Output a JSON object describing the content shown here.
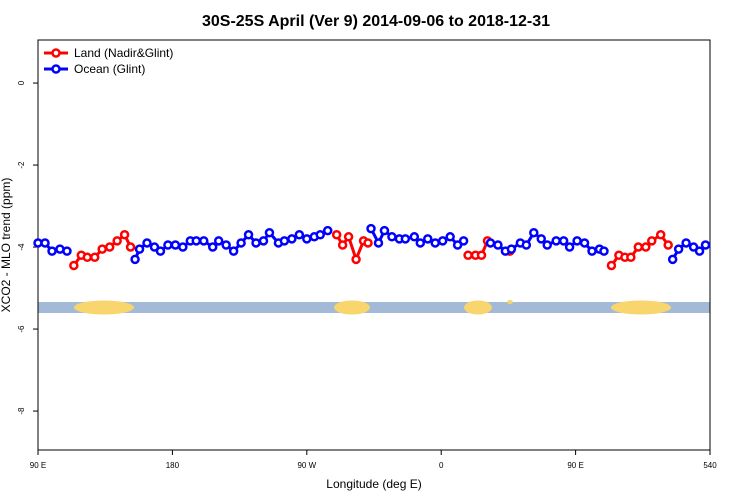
{
  "chart_data": {
    "type": "line",
    "title": "30S-25S April (Ver 9)   2014-09-06 to 2018-12-31",
    "x_label": "Longitude (deg E)",
    "y_label": "XCO2 - MLO trend (ppm)",
    "xlim": [
      90,
      540
    ],
    "ylim": [
      -8.95,
      1.05
    ],
    "xticks": [
      {
        "value": 90,
        "label": "90 E"
      },
      180,
      {
        "value": 270,
        "label": "90 W"
      },
      {
        "value": 360,
        "label": "0"
      },
      {
        "value": 450,
        "label": "90 E"
      },
      540
    ],
    "yticks": [
      0,
      -2,
      -4,
      -6,
      -8
    ],
    "legend": "top-left",
    "series": [
      {
        "name": "Land (Nadir&Glint)",
        "color": "#ff0000",
        "x": [
          114,
          119,
          123,
          128,
          133,
          138,
          143,
          148,
          152,
          null,
          290,
          294,
          298,
          303,
          308,
          311,
          null,
          378,
          383,
          387,
          391,
          null,
          406,
          null,
          474,
          479,
          483,
          487,
          492,
          497,
          501,
          507,
          512
        ],
        "values": [
          -4.45,
          -4.2,
          -4.25,
          -4.25,
          -4.05,
          -4.0,
          -3.85,
          -3.7,
          -4.0,
          null,
          -3.7,
          -3.95,
          -3.75,
          -4.3,
          -3.85,
          -3.9,
          null,
          -4.2,
          -4.2,
          -4.2,
          -3.85,
          null,
          -4.1,
          null,
          -4.45,
          -4.2,
          -4.25,
          -4.25,
          -4.0,
          -4.0,
          -3.85,
          -3.7,
          -3.95
        ]
      },
      {
        "name": "Ocean (Glint)",
        "color": "#0000ff",
        "x": [
          90,
          94.7,
          99.4,
          104.7,
          109.4,
          null,
          155,
          158,
          163,
          168,
          172,
          177,
          182,
          187,
          192,
          196,
          201,
          207,
          211,
          216,
          221,
          226,
          231,
          236,
          241,
          245,
          251,
          255,
          260,
          265,
          270,
          275,
          279,
          284,
          null,
          313,
          318,
          322,
          327,
          332,
          336,
          342,
          346,
          351,
          356,
          361,
          366,
          371,
          375,
          null,
          393,
          398,
          403,
          407,
          413,
          417,
          422,
          427,
          431,
          437,
          442,
          446,
          451,
          456,
          461,
          466,
          469,
          null,
          515,
          519,
          524,
          529,
          533,
          537
        ],
        "values": [
          -3.9,
          -3.9,
          -4.1,
          -4.05,
          -4.1,
          null,
          -4.3,
          -4.05,
          -3.9,
          -4.0,
          -4.1,
          -3.95,
          -3.95,
          -4.0,
          -3.85,
          -3.85,
          -3.85,
          -4.0,
          -3.85,
          -3.95,
          -4.1,
          -3.9,
          -3.7,
          -3.9,
          -3.85,
          -3.65,
          -3.9,
          -3.85,
          -3.8,
          -3.7,
          -3.8,
          -3.75,
          -3.7,
          -3.6,
          null,
          -3.55,
          -3.9,
          -3.6,
          -3.75,
          -3.8,
          -3.8,
          -3.75,
          -3.9,
          -3.8,
          -3.9,
          -3.85,
          -3.75,
          -3.95,
          -3.85,
          null,
          -3.9,
          -3.95,
          -4.1,
          -4.05,
          -3.9,
          -3.95,
          -3.65,
          -3.8,
          -3.95,
          -3.85,
          -3.85,
          -4.0,
          -3.85,
          -3.9,
          -4.1,
          -4.05,
          -4.1,
          null,
          -4.3,
          -4.05,
          -3.9,
          -4.0,
          -4.1,
          -3.95
        ]
      }
    ]
  }
}
